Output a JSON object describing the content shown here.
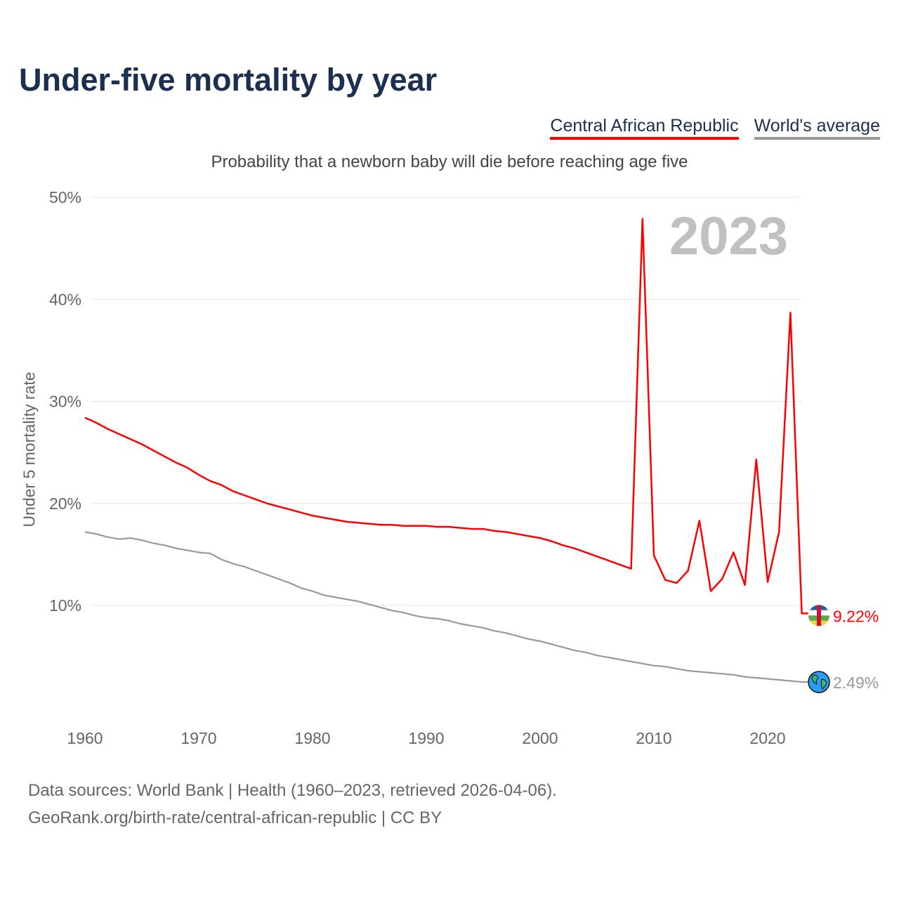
{
  "title": "Under-five mortality by year",
  "legend": [
    "Central African Republic",
    "World's average"
  ],
  "footer": {
    "line1": "Data sources: World Bank | Health (1960–2023, retrieved 2026-04-06).",
    "line2": "GeoRank.org/birth-rate/central-african-republic | CC BY"
  },
  "chart_data": {
    "type": "line",
    "title": "Under-five mortality by year",
    "subtitle": "Probability that a newborn baby will die before reaching age five",
    "xlabel": "",
    "ylabel": "Under 5 mortality rate",
    "year_watermark": "2023",
    "xlim": [
      1960,
      2023
    ],
    "ylim": [
      0,
      50
    ],
    "x_ticks": [
      "1960",
      "1970",
      "1980",
      "1990",
      "2000",
      "2010",
      "2020"
    ],
    "y_ticks": [
      "10%",
      "20%",
      "30%",
      "40%",
      "50%"
    ],
    "grid": true,
    "legend_position": "top-right",
    "end_labels": [
      "9.22%",
      "2.49%"
    ],
    "colors": {
      "car": "#ff0000",
      "world": "#999999"
    },
    "x": [
      1960,
      1961,
      1962,
      1963,
      1964,
      1965,
      1966,
      1967,
      1968,
      1969,
      1970,
      1971,
      1972,
      1973,
      1974,
      1975,
      1976,
      1977,
      1978,
      1979,
      1980,
      1981,
      1982,
      1983,
      1984,
      1985,
      1986,
      1987,
      1988,
      1989,
      1990,
      1991,
      1992,
      1993,
      1994,
      1995,
      1996,
      1997,
      1998,
      1999,
      2000,
      2001,
      2002,
      2003,
      2004,
      2005,
      2006,
      2007,
      2008,
      2009,
      2010,
      2011,
      2012,
      2013,
      2014,
      2015,
      2016,
      2017,
      2018,
      2019,
      2020,
      2021,
      2022,
      2023
    ],
    "series": [
      {
        "name": "Central African Republic",
        "values": [
          28.4,
          27.9,
          27.3,
          26.8,
          26.3,
          25.8,
          25.2,
          24.6,
          24.0,
          23.5,
          22.8,
          22.2,
          21.8,
          21.2,
          20.8,
          20.4,
          20.0,
          19.7,
          19.4,
          19.1,
          18.8,
          18.6,
          18.4,
          18.2,
          18.1,
          18.0,
          17.9,
          17.9,
          17.8,
          17.8,
          17.8,
          17.7,
          17.7,
          17.6,
          17.5,
          17.5,
          17.3,
          17.2,
          17.0,
          16.8,
          16.6,
          16.3,
          15.9,
          15.6,
          15.2,
          14.8,
          14.4,
          14.0,
          13.6,
          47.9,
          14.9,
          12.5,
          12.2,
          13.4,
          18.3,
          11.4,
          12.6,
          15.2,
          12.0,
          24.3,
          12.3,
          17.2,
          38.7,
          9.22
        ]
      },
      {
        "name": "World's average",
        "values": [
          17.2,
          17.0,
          16.7,
          16.5,
          16.6,
          16.4,
          16.1,
          15.9,
          15.6,
          15.4,
          15.2,
          15.1,
          14.5,
          14.1,
          13.8,
          13.4,
          13.0,
          12.6,
          12.2,
          11.7,
          11.4,
          11.0,
          10.8,
          10.6,
          10.4,
          10.1,
          9.8,
          9.5,
          9.3,
          9.0,
          8.8,
          8.7,
          8.5,
          8.2,
          8.0,
          7.8,
          7.5,
          7.3,
          7.0,
          6.7,
          6.5,
          6.2,
          5.9,
          5.6,
          5.4,
          5.1,
          4.9,
          4.7,
          4.5,
          4.3,
          4.1,
          4.0,
          3.8,
          3.6,
          3.5,
          3.4,
          3.3,
          3.2,
          3.0,
          2.9,
          2.8,
          2.7,
          2.6,
          2.49
        ]
      }
    ]
  }
}
